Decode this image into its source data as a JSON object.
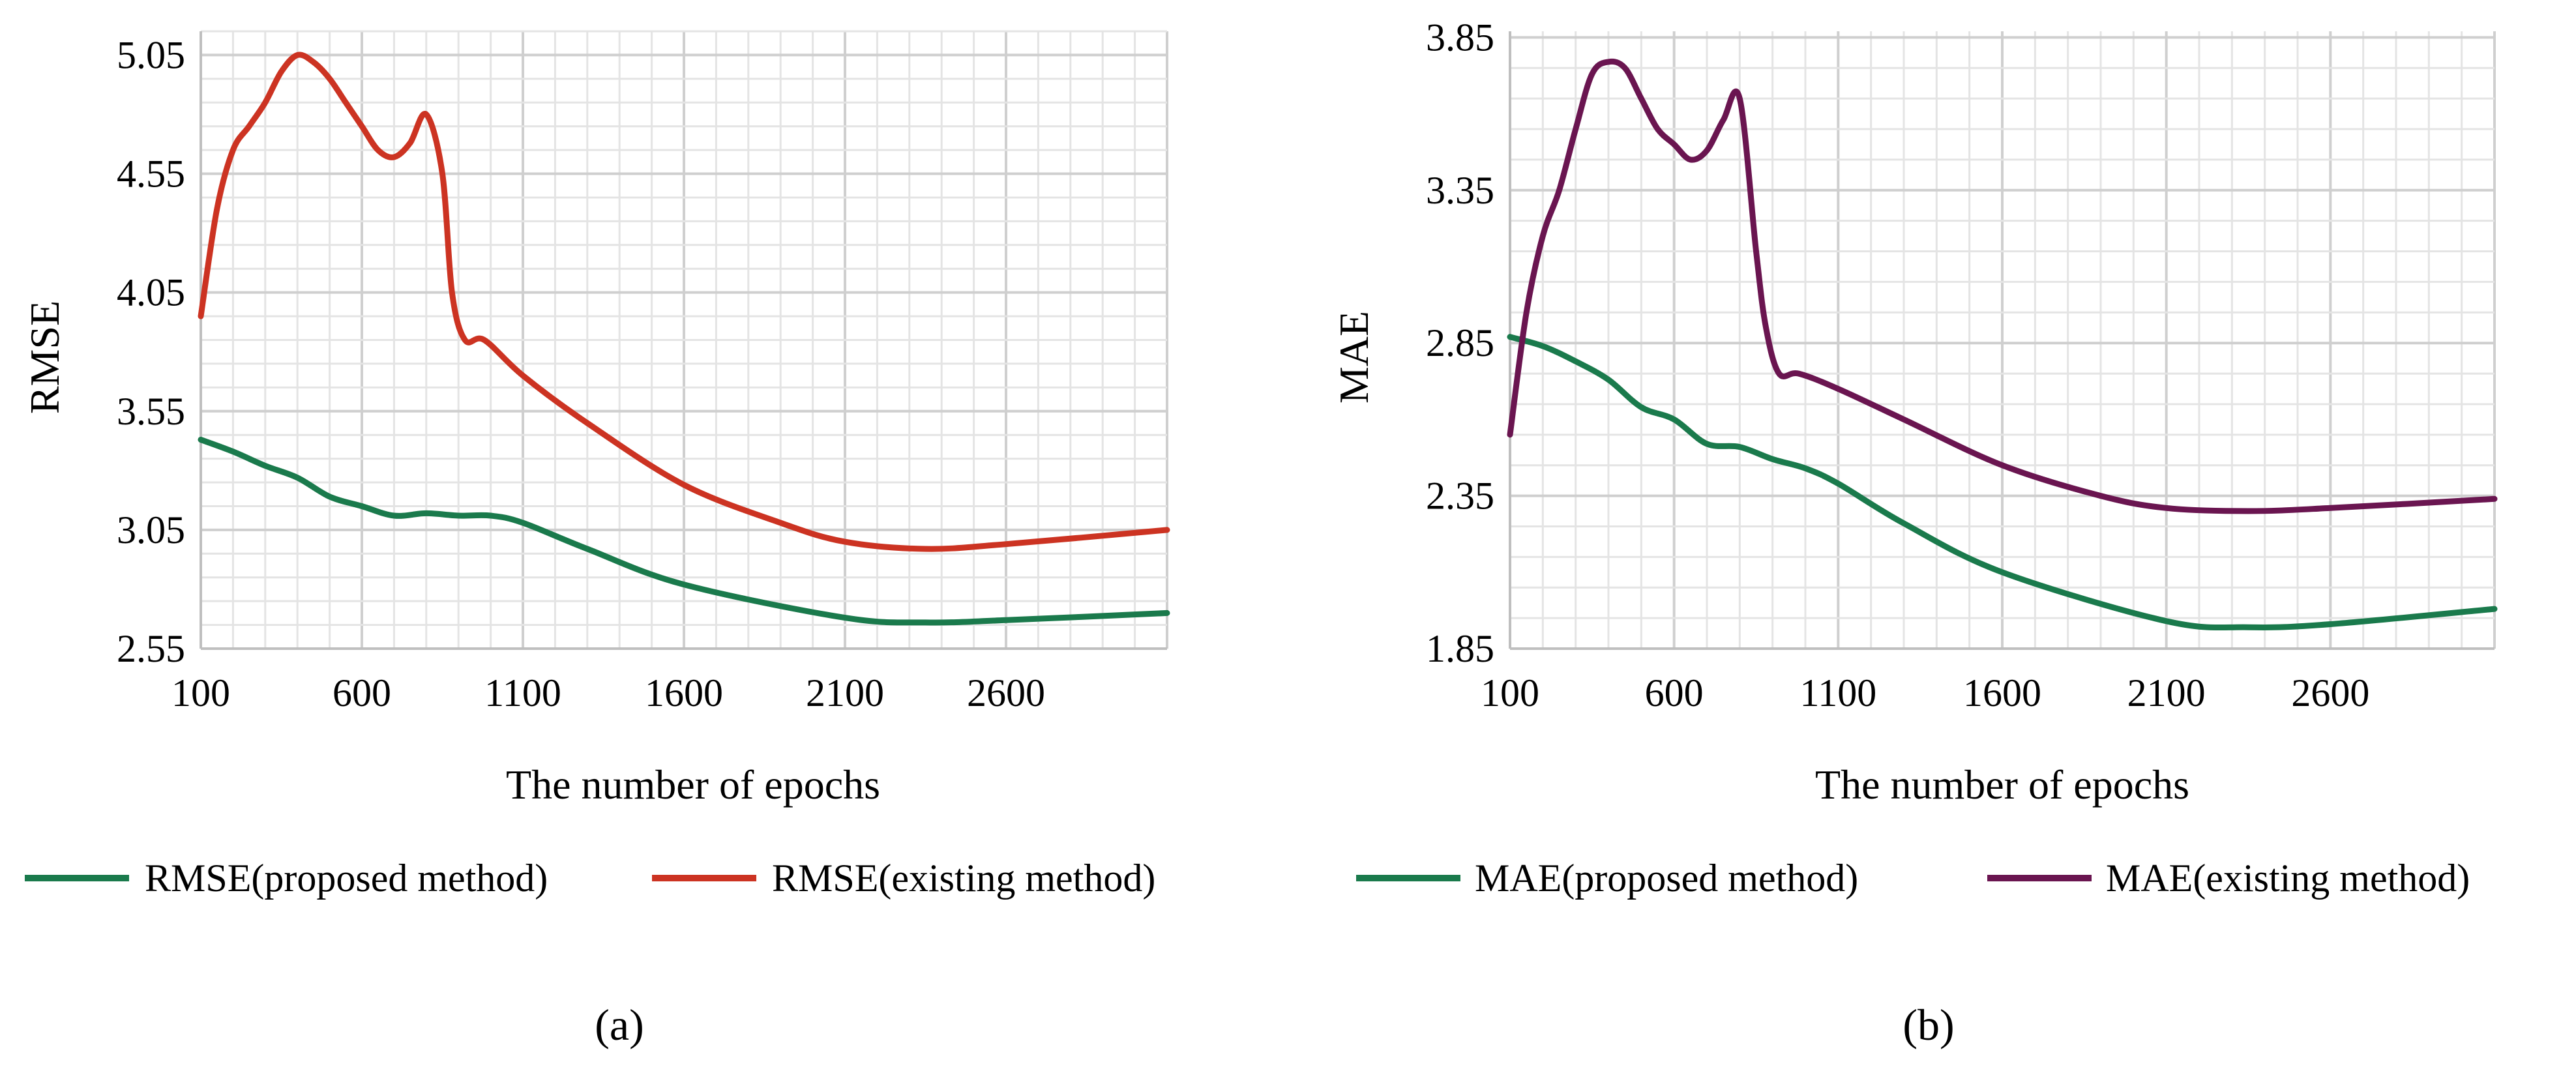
{
  "chart_data": [
    {
      "type": "line",
      "panel_label": "(a)",
      "title": "",
      "xlabel": "The number of epochs",
      "ylabel": "RMSE",
      "xlim": [
        100,
        3100
      ],
      "ylim": [
        2.55,
        5.15
      ],
      "xticks": [
        100,
        600,
        1100,
        1600,
        2100,
        2600
      ],
      "xtick_labels": [
        "100",
        "600",
        "1100",
        "1600",
        "2100",
        "2600"
      ],
      "yticks": [
        2.55,
        3.05,
        3.55,
        4.05,
        4.55,
        5.05
      ],
      "ytick_labels": [
        "2.55",
        "3.05",
        "3.55",
        "4.05",
        "4.55",
        "5.05"
      ],
      "grid": true,
      "legend_position": "bottom",
      "series": [
        {
          "name": "RMSE(proposed method)",
          "color": "#1a7a4c",
          "x": [
            100,
            200,
            300,
            400,
            500,
            600,
            700,
            800,
            900,
            1000,
            1100,
            1300,
            1600,
            2100,
            2350,
            2600,
            3100
          ],
          "y": [
            3.43,
            3.38,
            3.32,
            3.27,
            3.19,
            3.15,
            3.11,
            3.12,
            3.11,
            3.11,
            3.08,
            2.97,
            2.82,
            2.68,
            2.66,
            2.67,
            2.7
          ]
        },
        {
          "name": "RMSE(existing method)",
          "color": "#cc3322",
          "x": [
            100,
            150,
            200,
            250,
            300,
            350,
            400,
            450,
            500,
            550,
            600,
            650,
            700,
            750,
            800,
            850,
            880,
            920,
            980,
            1100,
            1300,
            1600,
            1900,
            2100,
            2350,
            2600,
            3100
          ],
          "y": [
            3.95,
            4.4,
            4.65,
            4.75,
            4.85,
            4.98,
            5.05,
            5.02,
            4.95,
            4.85,
            4.75,
            4.65,
            4.62,
            4.68,
            4.8,
            4.55,
            4.05,
            3.85,
            3.85,
            3.7,
            3.5,
            3.24,
            3.08,
            3.0,
            2.97,
            2.99,
            3.05
          ]
        }
      ]
    },
    {
      "type": "line",
      "panel_label": "(b)",
      "title": "",
      "xlabel": "The number of epochs",
      "ylabel": "MAE",
      "xlim": [
        100,
        3100
      ],
      "ylim": [
        1.85,
        3.87
      ],
      "xticks": [
        100,
        600,
        1100,
        1600,
        2100,
        2600
      ],
      "xtick_labels": [
        "100",
        "600",
        "1100",
        "1600",
        "2100",
        "2600"
      ],
      "yticks": [
        1.85,
        2.35,
        2.85,
        3.35,
        3.85
      ],
      "ytick_labels": [
        "1.85",
        "2.35",
        "2.85",
        "3.35",
        "3.85"
      ],
      "grid": true,
      "legend_position": "bottom",
      "series": [
        {
          "name": "MAE(proposed method)",
          "color": "#1a7a4c",
          "x": [
            100,
            200,
            300,
            400,
            500,
            600,
            700,
            800,
            900,
            1000,
            1100,
            1300,
            1600,
            2100,
            2350,
            2600,
            3100
          ],
          "y": [
            2.87,
            2.84,
            2.79,
            2.73,
            2.64,
            2.6,
            2.52,
            2.51,
            2.47,
            2.44,
            2.39,
            2.26,
            2.1,
            1.94,
            1.92,
            1.93,
            1.98
          ]
        },
        {
          "name": "MAE(existing method)",
          "color": "#6a1550",
          "x": [
            100,
            150,
            200,
            250,
            300,
            350,
            400,
            450,
            500,
            550,
            600,
            650,
            700,
            750,
            800,
            850,
            880,
            920,
            980,
            1100,
            1300,
            1600,
            1900,
            2100,
            2350,
            2600,
            3100
          ],
          "y": [
            2.55,
            2.95,
            3.2,
            3.35,
            3.55,
            3.73,
            3.77,
            3.75,
            3.65,
            3.55,
            3.5,
            3.45,
            3.48,
            3.58,
            3.65,
            3.15,
            2.9,
            2.75,
            2.75,
            2.7,
            2.6,
            2.45,
            2.35,
            2.31,
            2.3,
            2.31,
            2.34
          ]
        }
      ]
    }
  ]
}
